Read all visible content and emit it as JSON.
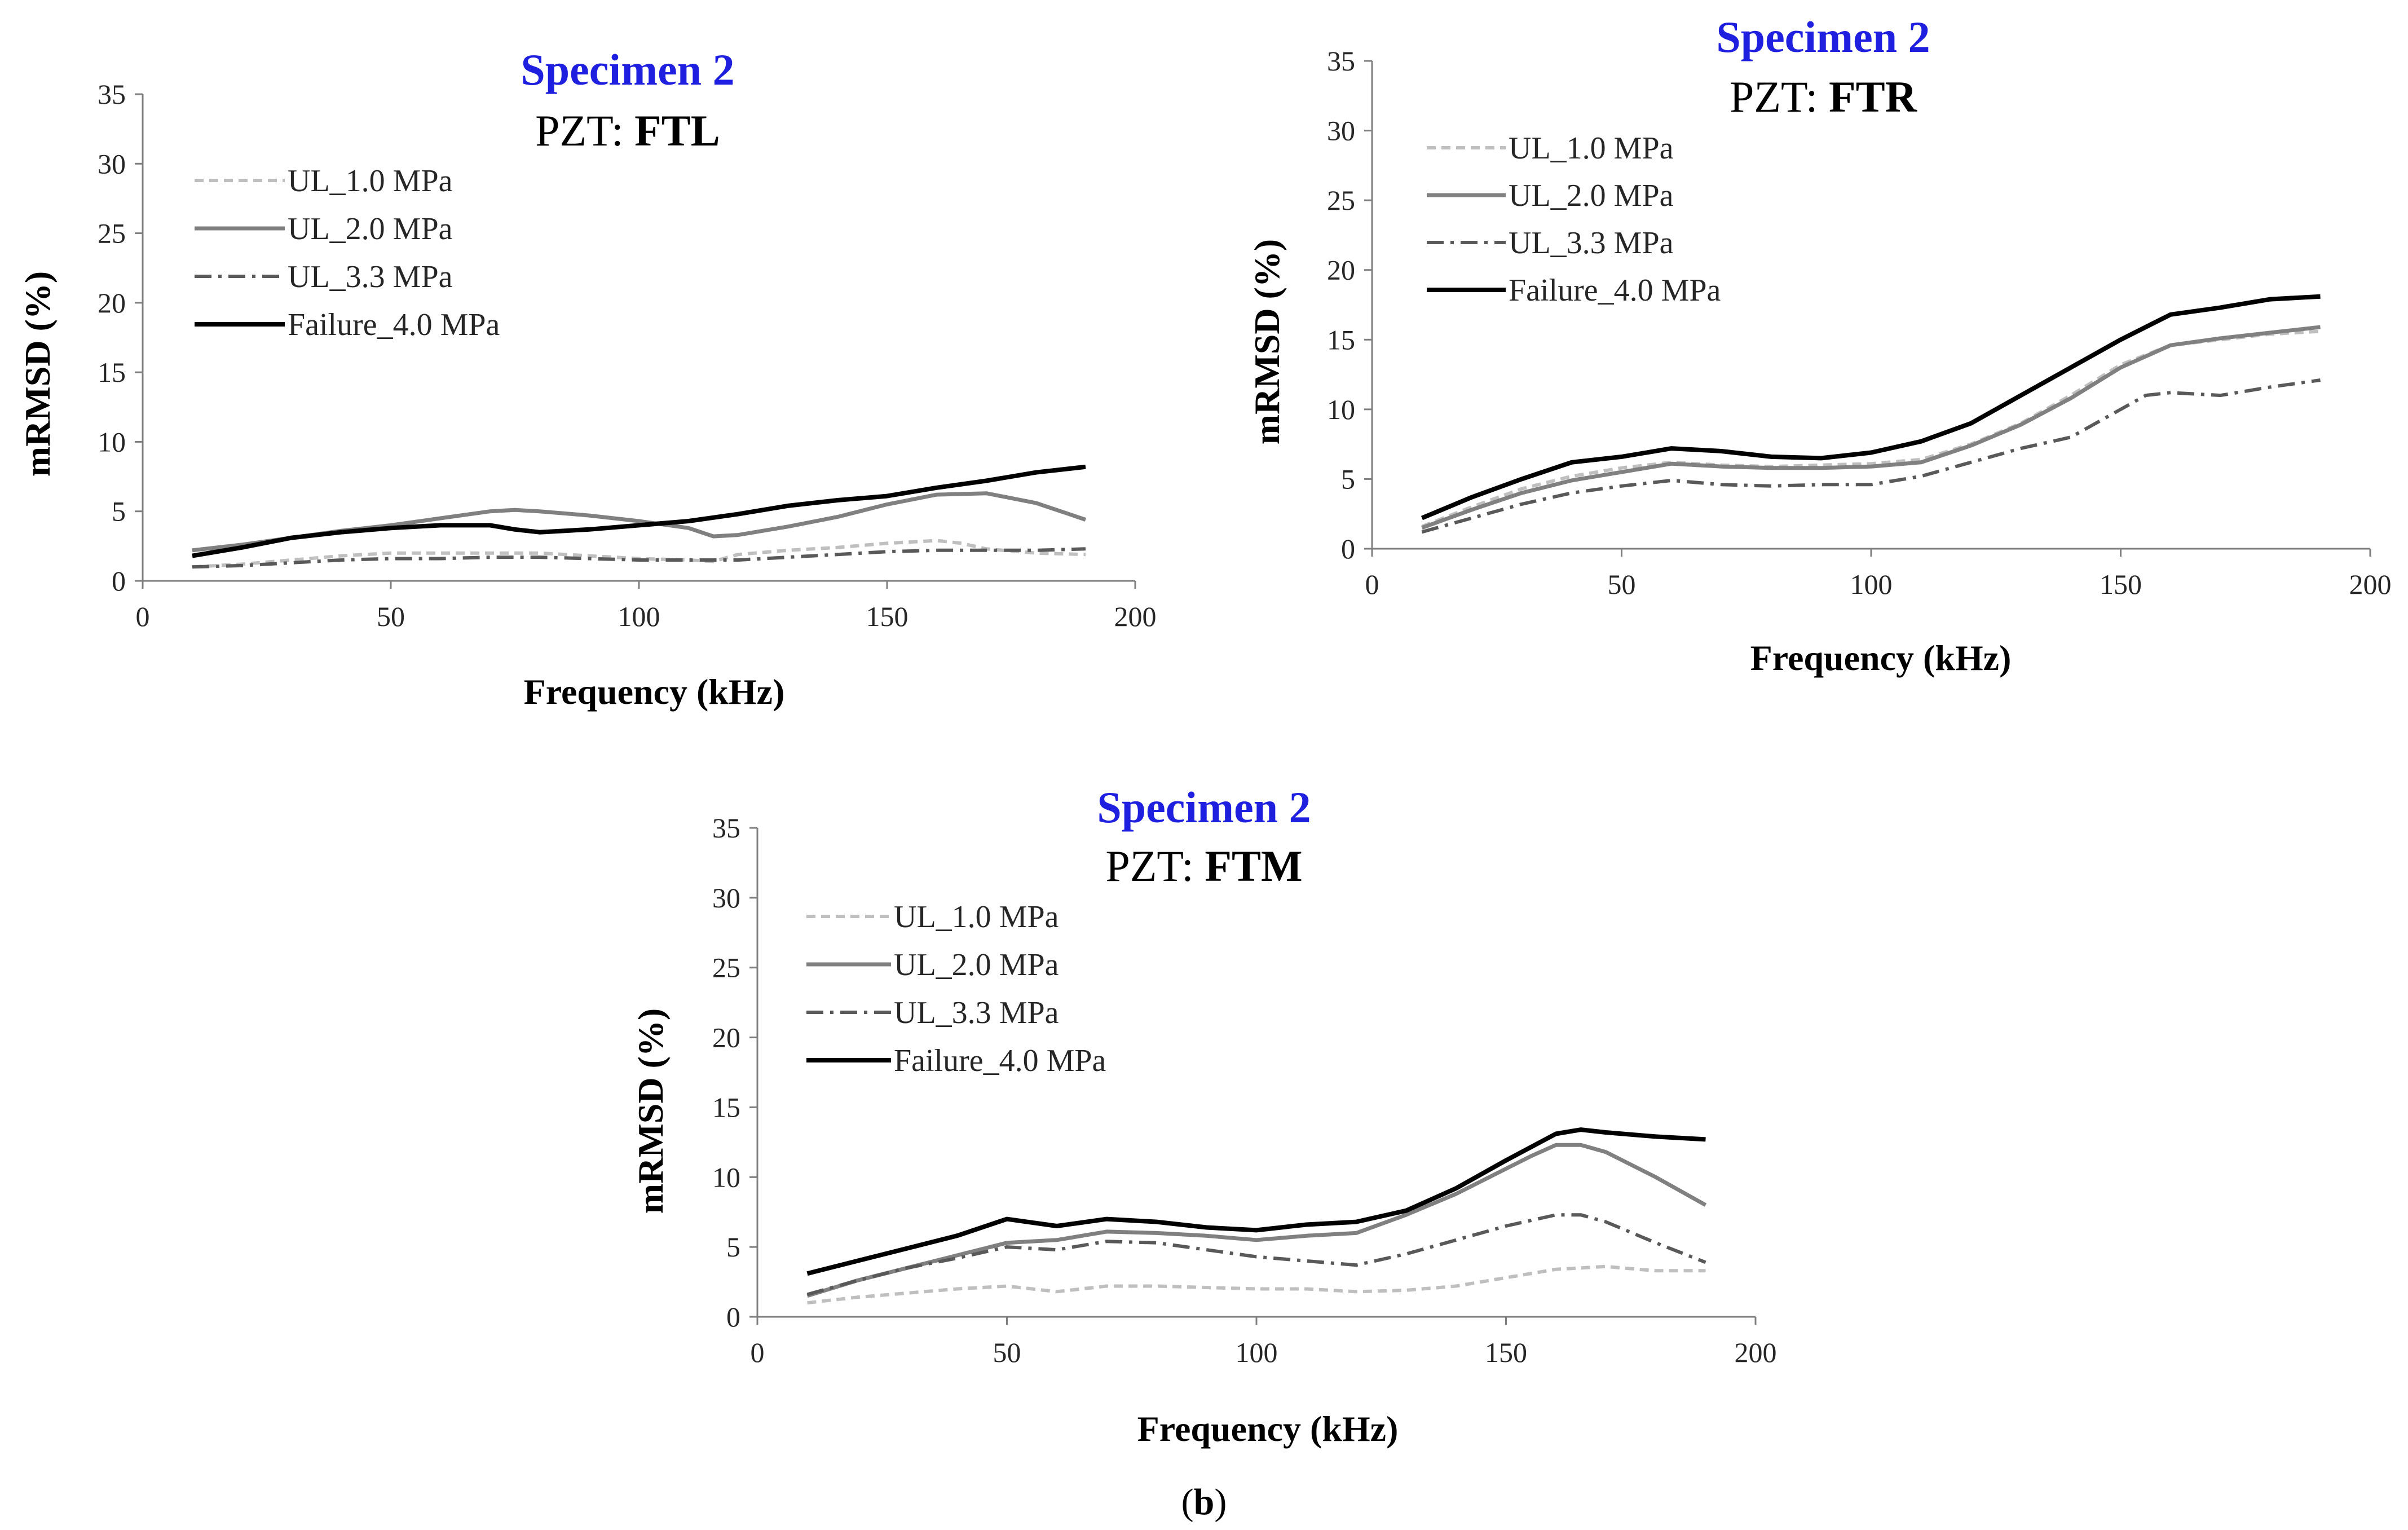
{
  "caption": {
    "open": "(",
    "label": "b",
    "close": ")"
  },
  "colors": {
    "title": "#1f1fe0",
    "axis": "#7f7f7f",
    "UL_1.0": "#bfbfbf",
    "UL_2.0": "#808080",
    "UL_3.3": "#595959",
    "Failure": "#000000"
  },
  "chart_data": [
    {
      "type": "line",
      "title": "Specimen 2",
      "subtitle_prefix": "PZT: ",
      "subtitle_bold": "FTL",
      "xlabel": "Frequency (kHz)",
      "ylabel": "mRMSD (%)",
      "xlim": [
        0,
        200
      ],
      "ylim": [
        0,
        35
      ],
      "xticks": [
        0,
        50,
        100,
        150,
        200
      ],
      "yticks": [
        0,
        5,
        10,
        15,
        20,
        25,
        30,
        35
      ],
      "legend_position": "top-left",
      "series": [
        {
          "name": "UL_1.0 MPa",
          "key": "UL_1.0",
          "style": "dashed",
          "x": [
            10,
            20,
            30,
            40,
            50,
            60,
            70,
            80,
            90,
            100,
            110,
            115,
            120,
            130,
            140,
            150,
            160,
            165,
            170,
            180,
            190
          ],
          "y": [
            1.0,
            1.2,
            1.5,
            1.8,
            2.0,
            2.0,
            2.0,
            2.0,
            1.8,
            1.6,
            1.5,
            1.4,
            1.9,
            2.2,
            2.4,
            2.7,
            2.9,
            2.7,
            2.3,
            2.0,
            1.9
          ]
        },
        {
          "name": "UL_2.0 MPa",
          "key": "UL_2.0",
          "style": "solid",
          "x": [
            10,
            20,
            30,
            40,
            50,
            60,
            70,
            75,
            80,
            90,
            100,
            110,
            115,
            120,
            130,
            140,
            150,
            160,
            170,
            180,
            190
          ],
          "y": [
            2.2,
            2.6,
            3.1,
            3.6,
            4.0,
            4.5,
            5.0,
            5.1,
            5.0,
            4.7,
            4.3,
            3.8,
            3.2,
            3.3,
            3.9,
            4.6,
            5.5,
            6.2,
            6.3,
            5.6,
            4.4
          ]
        },
        {
          "name": "UL_3.3 MPa",
          "key": "UL_3.3",
          "style": "dashdot",
          "x": [
            10,
            20,
            30,
            40,
            50,
            60,
            70,
            80,
            90,
            100,
            110,
            120,
            130,
            140,
            150,
            160,
            170,
            180,
            190
          ],
          "y": [
            1.0,
            1.1,
            1.3,
            1.5,
            1.6,
            1.6,
            1.7,
            1.7,
            1.6,
            1.5,
            1.5,
            1.5,
            1.7,
            1.9,
            2.1,
            2.2,
            2.2,
            2.2,
            2.3
          ]
        },
        {
          "name": "Failure_4.0 MPa",
          "key": "Failure",
          "style": "solid-bold",
          "x": [
            10,
            20,
            30,
            40,
            50,
            60,
            70,
            75,
            80,
            90,
            100,
            110,
            120,
            130,
            140,
            150,
            160,
            170,
            180,
            190
          ],
          "y": [
            1.8,
            2.4,
            3.1,
            3.5,
            3.8,
            4.0,
            4.0,
            3.7,
            3.5,
            3.7,
            4.0,
            4.3,
            4.8,
            5.4,
            5.8,
            6.1,
            6.7,
            7.2,
            7.8,
            8.2
          ]
        }
      ]
    },
    {
      "type": "line",
      "title": "Specimen 2",
      "subtitle_prefix": "PZT: ",
      "subtitle_bold": "FTR",
      "xlabel": "Frequency (kHz)",
      "ylabel": "mRMSD (%)",
      "xlim": [
        0,
        200
      ],
      "ylim": [
        0,
        35
      ],
      "xticks": [
        0,
        50,
        100,
        150,
        200
      ],
      "yticks": [
        0,
        5,
        10,
        15,
        20,
        25,
        30,
        35
      ],
      "legend_position": "top-left",
      "series": [
        {
          "name": "UL_1.0 MPa",
          "key": "UL_1.0",
          "style": "dashed",
          "x": [
            10,
            20,
            30,
            40,
            50,
            60,
            70,
            80,
            90,
            100,
            110,
            120,
            130,
            140,
            150,
            160,
            170,
            180,
            190
          ],
          "y": [
            1.6,
            3.0,
            4.3,
            5.2,
            5.8,
            6.2,
            6.0,
            5.9,
            6.0,
            6.1,
            6.4,
            7.5,
            9.0,
            11.0,
            13.2,
            14.6,
            15.0,
            15.4,
            15.6
          ]
        },
        {
          "name": "UL_2.0 MPa",
          "key": "UL_2.0",
          "style": "solid",
          "x": [
            10,
            20,
            30,
            40,
            50,
            60,
            70,
            80,
            90,
            100,
            110,
            120,
            130,
            140,
            150,
            160,
            170,
            180,
            190
          ],
          "y": [
            1.5,
            2.8,
            4.0,
            4.9,
            5.5,
            6.1,
            5.9,
            5.8,
            5.8,
            5.9,
            6.2,
            7.4,
            8.9,
            10.8,
            13.0,
            14.6,
            15.1,
            15.5,
            15.9
          ]
        },
        {
          "name": "UL_3.3 MPa",
          "key": "UL_3.3",
          "style": "dashdot",
          "x": [
            10,
            20,
            30,
            40,
            50,
            60,
            70,
            80,
            90,
            100,
            110,
            120,
            130,
            140,
            150,
            155,
            160,
            170,
            180,
            190
          ],
          "y": [
            1.2,
            2.2,
            3.2,
            4.0,
            4.5,
            4.9,
            4.6,
            4.5,
            4.6,
            4.6,
            5.2,
            6.2,
            7.2,
            8.0,
            10.0,
            11.0,
            11.2,
            11.0,
            11.6,
            12.1
          ]
        },
        {
          "name": "Failure_4.0 MPa",
          "key": "Failure",
          "style": "solid-bold",
          "x": [
            10,
            20,
            30,
            40,
            50,
            60,
            70,
            80,
            90,
            100,
            110,
            120,
            130,
            140,
            150,
            160,
            170,
            180,
            190
          ],
          "y": [
            2.2,
            3.7,
            5.0,
            6.2,
            6.6,
            7.2,
            7.0,
            6.6,
            6.5,
            6.9,
            7.7,
            9.0,
            11.0,
            13.0,
            15.0,
            16.8,
            17.3,
            17.9,
            18.1
          ]
        }
      ]
    },
    {
      "type": "line",
      "title": "Specimen 2",
      "subtitle_prefix": "PZT: ",
      "subtitle_bold": "FTM",
      "xlabel": "Frequency (kHz)",
      "ylabel": "mRMSD (%)",
      "xlim": [
        0,
        200
      ],
      "ylim": [
        0,
        35
      ],
      "xticks": [
        0,
        50,
        100,
        150,
        200
      ],
      "yticks": [
        0,
        5,
        10,
        15,
        20,
        25,
        30,
        35
      ],
      "legend_position": "top-left",
      "series": [
        {
          "name": "UL_1.0 MPa",
          "key": "UL_1.0",
          "style": "dashed",
          "x": [
            10,
            20,
            30,
            40,
            50,
            60,
            70,
            80,
            90,
            100,
            110,
            120,
            130,
            140,
            150,
            160,
            170,
            180,
            190
          ],
          "y": [
            1.0,
            1.4,
            1.7,
            2.0,
            2.2,
            1.8,
            2.2,
            2.2,
            2.1,
            2.0,
            2.0,
            1.8,
            1.9,
            2.2,
            2.8,
            3.4,
            3.6,
            3.3,
            3.3
          ]
        },
        {
          "name": "UL_2.0 MPa",
          "key": "UL_2.0",
          "style": "solid",
          "x": [
            10,
            20,
            30,
            40,
            50,
            60,
            70,
            80,
            90,
            100,
            110,
            120,
            130,
            140,
            150,
            155,
            160,
            165,
            170,
            180,
            190
          ],
          "y": [
            1.5,
            2.6,
            3.5,
            4.4,
            5.3,
            5.5,
            6.1,
            6.0,
            5.8,
            5.5,
            5.8,
            6.0,
            7.3,
            8.8,
            10.6,
            11.5,
            12.3,
            12.3,
            11.8,
            10.0,
            8.0
          ]
        },
        {
          "name": "UL_3.3 MPa",
          "key": "UL_3.3",
          "style": "dashdot",
          "x": [
            10,
            20,
            30,
            40,
            50,
            60,
            70,
            80,
            90,
            100,
            110,
            120,
            130,
            140,
            150,
            160,
            165,
            170,
            180,
            190
          ],
          "y": [
            1.6,
            2.6,
            3.5,
            4.2,
            5.0,
            4.8,
            5.4,
            5.3,
            4.8,
            4.3,
            4.0,
            3.7,
            4.5,
            5.5,
            6.5,
            7.3,
            7.3,
            6.8,
            5.3,
            3.9
          ]
        },
        {
          "name": "Failure_4.0 MPa",
          "key": "Failure",
          "style": "solid-bold",
          "x": [
            10,
            20,
            30,
            40,
            50,
            60,
            70,
            80,
            90,
            100,
            110,
            120,
            130,
            140,
            150,
            160,
            165,
            170,
            180,
            190
          ],
          "y": [
            3.1,
            4.0,
            4.9,
            5.8,
            7.0,
            6.5,
            7.0,
            6.8,
            6.4,
            6.2,
            6.6,
            6.8,
            7.6,
            9.2,
            11.2,
            13.1,
            13.4,
            13.2,
            12.9,
            12.7
          ]
        }
      ]
    }
  ]
}
